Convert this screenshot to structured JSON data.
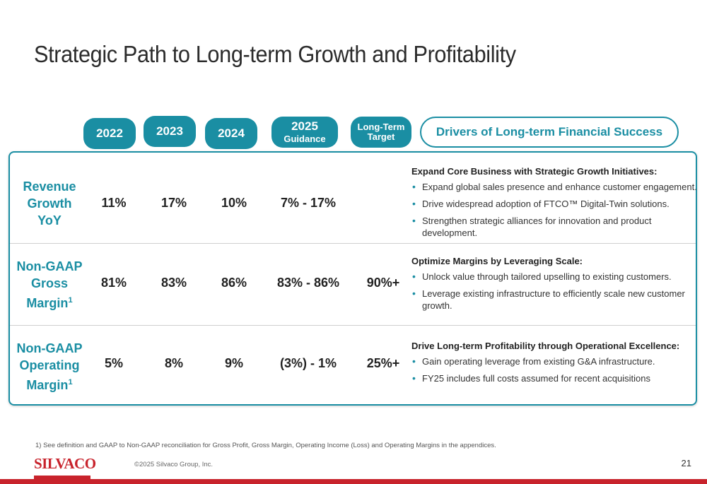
{
  "title": "Strategic Path to Long-term Growth and Profitability",
  "headers": {
    "y2022": "2022",
    "y2023": "2023",
    "y2024": "2024",
    "guidance_main": "2025",
    "guidance_sub": "Guidance",
    "longterm_line1": "Long-Term",
    "longterm_line2": "Target",
    "drivers": "Drivers of Long-term Financial Success"
  },
  "rows": [
    {
      "label_lines": [
        "Revenue",
        "Growth",
        "YoY"
      ],
      "values": [
        "11%",
        "17%",
        "10%",
        "7% - 17%",
        ""
      ],
      "driver_head": "Expand Core Business with Strategic Growth Initiatives:",
      "bullets": [
        "Expand global sales presence and enhance customer engagement.",
        "Drive widespread adoption of FTCO™ Digital-Twin solutions.",
        "Strengthen strategic alliances for innovation and product development."
      ]
    },
    {
      "label_lines": [
        "Non-GAAP",
        "Gross",
        "Margin"
      ],
      "label_sup": "1",
      "values": [
        "81%",
        "83%",
        "86%",
        "83% - 86%",
        "90%+"
      ],
      "driver_head": "Optimize Margins by Leveraging Scale:",
      "bullets": [
        "Unlock value through tailored upselling to existing customers.",
        "Leverage existing infrastructure to efficiently scale new customer growth."
      ]
    },
    {
      "label_lines": [
        "Non-GAAP",
        "Operating",
        "Margin"
      ],
      "label_sup": "1",
      "values": [
        "5%",
        "8%",
        "9%",
        "(3%) - 1%",
        "25%+"
      ],
      "driver_head": "Drive Long-term Profitability through Operational Excellence:",
      "bullets": [
        "Gain operating leverage from existing G&A infrastructure.",
        "FY25 includes full costs assumed for recent acquisitions"
      ]
    }
  ],
  "footnote": "1)  See definition and GAAP to Non-GAAP reconciliation for Gross Profit, Gross Margin, Operating Income (Loss)  and Operating Margins in the appendices.",
  "logo": "SILVACO",
  "copyright": "©2025 Silvaco Group, Inc.",
  "page_number": "21",
  "colors": {
    "teal": "#1a8ea3",
    "brand_red": "#c8232c"
  }
}
